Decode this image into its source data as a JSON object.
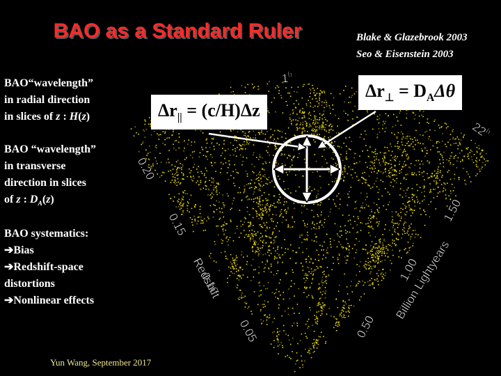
{
  "title": "BAO as a Standard Ruler",
  "citations": [
    "Blake & Glazebrook 2003",
    "Seo & Eisenstein 2003"
  ],
  "formula_parallel": {
    "lhs": "Δr",
    "sub": "||",
    "rhs": " = (c/H)Δz"
  },
  "formula_perp": {
    "lhs": "Δr",
    "sub": "⊥",
    "mid": " = D",
    "sub2": "A",
    "rhs": "Δθ"
  },
  "radial_text": {
    "lines": [
      "BAO“wavelength”",
      "in radial direction"
    ],
    "last": [
      "in slices of ",
      "z",
      " : ",
      "H",
      "(",
      "z",
      ")"
    ]
  },
  "transverse_text": {
    "lines": [
      "BAO “wavelength”",
      "in transverse",
      "direction in slices"
    ],
    "last": [
      "of ",
      "z",
      " : ",
      "D",
      "A",
      "(",
      "z",
      ")"
    ]
  },
  "systematics": {
    "heading": "BAO systematics:",
    "items": [
      "Bias",
      "Redshift-space",
      "distortions",
      "Nonlinear effects"
    ]
  },
  "wedge": {
    "redshift_title": "Redshift",
    "redshift_ticks": [
      "0.20",
      "0.15",
      "0.10",
      "0.05"
    ],
    "distance_title": "Billion Lightyears",
    "distance_ticks": [
      "1.50",
      "1.00",
      "0.50"
    ],
    "hours": [
      {
        "num": "1",
        "unit": "h"
      },
      {
        "num": "22",
        "unit": "h"
      }
    ]
  },
  "footer": "Yun Wang, September 2017"
}
